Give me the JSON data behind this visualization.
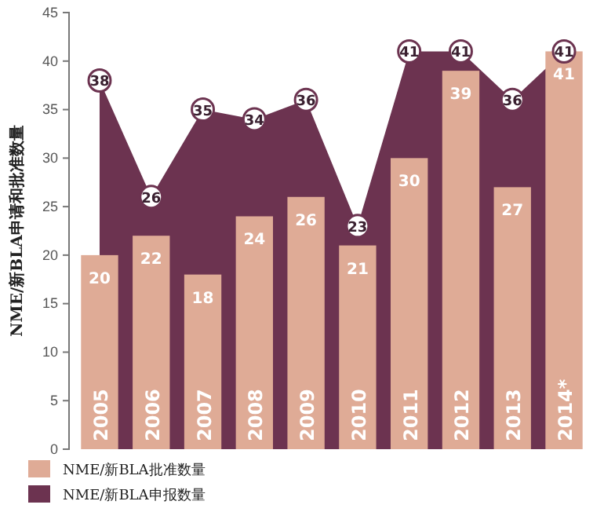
{
  "chart_data": {
    "type": "bar",
    "ylabel": "NME/新BLA申请和批准数量",
    "categories": [
      "2005",
      "2006",
      "2007",
      "2008",
      "2009",
      "2010",
      "2011",
      "2012",
      "2013",
      "2014*"
    ],
    "series": [
      {
        "name": "NME/新BLA批准数量",
        "color": "#dfab96",
        "values": [
          20,
          22,
          18,
          24,
          26,
          21,
          30,
          39,
          27,
          41
        ]
      },
      {
        "name": "NME/新BLA申报数量",
        "type": "area",
        "color": "#6c3350",
        "values": [
          38,
          26,
          35,
          34,
          36,
          23,
          41,
          41,
          36,
          41
        ]
      }
    ],
    "ylim": [
      0,
      45
    ],
    "yticks": [
      0,
      5,
      10,
      15,
      20,
      25,
      30,
      35,
      40,
      45
    ],
    "legend": "bottom left",
    "data_labels": true
  }
}
